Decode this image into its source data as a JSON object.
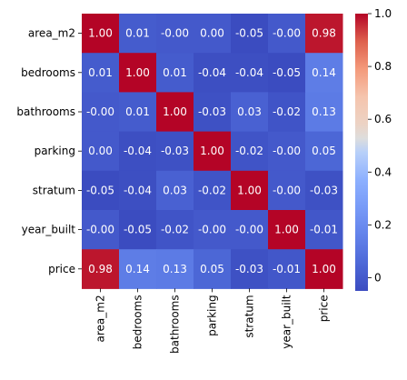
{
  "chart_data": {
    "type": "heatmap",
    "title": "",
    "xlabel": "",
    "ylabel": "",
    "x_categories": [
      "area_m2",
      "bedrooms",
      "bathrooms",
      "parking",
      "stratum",
      "year_built",
      "price"
    ],
    "y_categories": [
      "area_m2",
      "bedrooms",
      "bathrooms",
      "parking",
      "stratum",
      "year_built",
      "price"
    ],
    "values": [
      [
        1.0,
        0.01,
        -0.0,
        0.0,
        -0.05,
        -0.0,
        0.98
      ],
      [
        0.01,
        1.0,
        0.01,
        -0.04,
        -0.04,
        -0.05,
        0.14
      ],
      [
        -0.0,
        0.01,
        1.0,
        -0.03,
        0.03,
        -0.02,
        0.13
      ],
      [
        0.0,
        -0.04,
        -0.03,
        1.0,
        -0.02,
        -0.0,
        0.05
      ],
      [
        -0.05,
        -0.04,
        0.03,
        -0.02,
        1.0,
        -0.0,
        -0.03
      ],
      [
        -0.0,
        -0.05,
        -0.02,
        -0.0,
        -0.0,
        1.0,
        -0.01
      ],
      [
        0.98,
        0.14,
        0.13,
        0.05,
        -0.03,
        -0.01,
        1.0
      ]
    ],
    "annotations": [
      [
        "1.00",
        "0.01",
        "-0.00",
        "0.00",
        "-0.05",
        "-0.00",
        "0.98"
      ],
      [
        "0.01",
        "1.00",
        "0.01",
        "-0.04",
        "-0.04",
        "-0.05",
        "0.14"
      ],
      [
        "-0.00",
        "0.01",
        "1.00",
        "-0.03",
        "0.03",
        "-0.02",
        "0.13"
      ],
      [
        "0.00",
        "-0.04",
        "-0.03",
        "1.00",
        "-0.02",
        "-0.00",
        "0.05"
      ],
      [
        "-0.05",
        "-0.04",
        "0.03",
        "-0.02",
        "1.00",
        "-0.00",
        "-0.03"
      ],
      [
        "-0.00",
        "-0.05",
        "-0.02",
        "-0.00",
        "-0.00",
        "1.00",
        "-0.01"
      ],
      [
        "0.98",
        "0.14",
        "0.13",
        "0.05",
        "-0.03",
        "-0.01",
        "1.00"
      ]
    ],
    "colormap": "coolwarm",
    "vmin": -0.05,
    "vmax": 1.0,
    "colorbar_ticks": [
      0,
      0.2,
      0.4,
      0.6,
      0.8,
      1.0
    ],
    "colorbar_tick_labels": [
      "0",
      "0.2",
      "0.4",
      "0.6",
      "0.8",
      "1.0"
    ],
    "grid": false,
    "legend": "colorbar-right"
  }
}
